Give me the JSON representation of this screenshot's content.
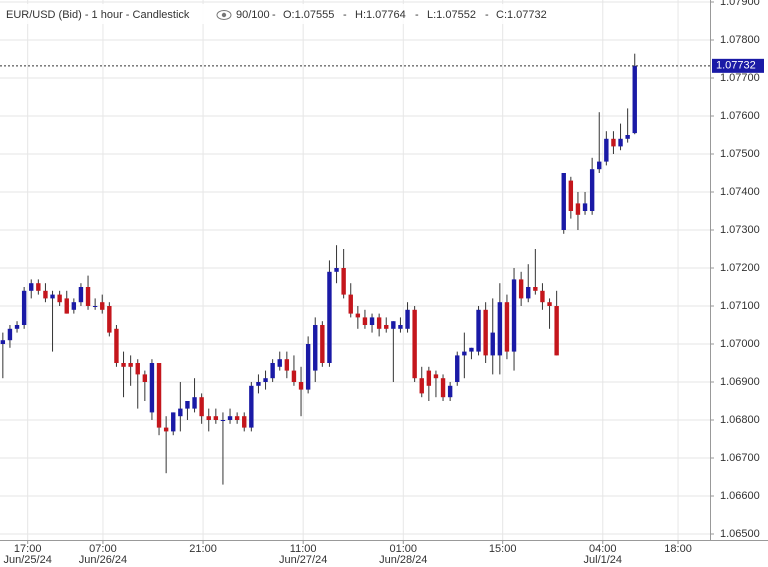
{
  "chart_data": {
    "type": "candlestick",
    "title": "EUR/USD (Bid) - 1 hour - Candlestick",
    "zoom": "90/100",
    "ohlc_text": [
      "O:1.07555",
      "H:1.07764",
      "L:1.07552",
      "C:1.07732"
    ],
    "last_price": 1.07732,
    "up_color": "#1a1aa6",
    "down_color": "#c4161c",
    "grid": true,
    "xlim": [
      -0.4,
      99.6
    ],
    "ylim": [
      1.065,
      1.079
    ],
    "yticks": [
      {
        "value": 1.065,
        "label": "1.06500"
      },
      {
        "value": 1.066,
        "label": "1.06600"
      },
      {
        "value": 1.067,
        "label": "1.06700"
      },
      {
        "value": 1.068,
        "label": "1.06800"
      },
      {
        "value": 1.069,
        "label": "1.06900"
      },
      {
        "value": 1.07,
        "label": "1.07000"
      },
      {
        "value": 1.071,
        "label": "1.07100"
      },
      {
        "value": 1.072,
        "label": "1.07200"
      },
      {
        "value": 1.073,
        "label": "1.07300"
      },
      {
        "value": 1.074,
        "label": "1.07400"
      },
      {
        "value": 1.075,
        "label": "1.07500"
      },
      {
        "value": 1.076,
        "label": "1.07600"
      },
      {
        "value": 1.077,
        "label": "1.07700"
      },
      {
        "value": 1.078,
        "label": "1.07800"
      },
      {
        "value": 1.079,
        "label": "1.07900"
      }
    ],
    "xticks": [
      {
        "value": 3.5,
        "label": "17:00"
      },
      {
        "value": 14.1,
        "label": "07:00"
      },
      {
        "value": 28.2,
        "label": "21:00"
      },
      {
        "value": 42.3,
        "label": "11:00"
      },
      {
        "value": 56.4,
        "label": "01:00"
      },
      {
        "value": 70.4,
        "label": "15:00"
      },
      {
        "value": 84.5,
        "label": "04:00"
      },
      {
        "value": 95.1,
        "label": "18:00"
      }
    ],
    "xtick_dates": [
      {
        "value": 3.5,
        "label": "Jun/25/24"
      },
      {
        "value": 14.1,
        "label": "Jun/26/24"
      },
      {
        "value": 42.3,
        "label": "Jun/27/24"
      },
      {
        "value": 56.4,
        "label": "Jun/28/24"
      },
      {
        "value": 84.5,
        "label": "Jul/1/24"
      }
    ],
    "x": [
      0,
      1,
      2,
      3,
      4,
      5,
      6,
      7,
      8,
      9,
      10,
      11,
      12,
      13,
      14,
      15,
      16,
      17,
      18,
      19,
      20,
      21,
      22,
      23,
      24,
      25,
      26,
      27,
      28,
      29,
      30,
      31,
      32,
      33,
      34,
      35,
      36,
      37,
      38,
      39,
      40,
      41,
      42,
      43,
      44,
      45,
      46,
      47,
      48,
      49,
      50,
      51,
      52,
      53,
      54,
      55,
      56,
      57,
      58,
      59,
      60,
      61,
      62,
      63,
      64,
      65,
      66,
      67,
      68,
      69,
      70,
      71,
      72,
      73,
      74,
      75,
      76,
      77,
      78,
      79,
      80,
      81,
      82,
      83,
      84,
      85,
      86,
      87,
      88,
      89
    ],
    "open": [
      1.07,
      1.0701,
      1.0704,
      1.0705,
      1.0714,
      1.0716,
      1.0714,
      1.0712,
      1.0713,
      1.0712,
      1.0709,
      1.0711,
      1.0715,
      1.071,
      1.0711,
      1.071,
      1.0704,
      1.0695,
      1.0695,
      1.0695,
      1.0692,
      1.0682,
      1.0695,
      1.0678,
      1.0677,
      1.0681,
      1.0683,
      1.0683,
      1.0686,
      1.0681,
      1.0681,
      1.068,
      1.068,
      1.0681,
      1.0681,
      1.0678,
      1.0689,
      1.069,
      1.0691,
      1.0694,
      1.0696,
      1.0693,
      1.069,
      1.0688,
      1.0693,
      1.0705,
      1.0695,
      1.0719,
      1.072,
      1.0713,
      1.0708,
      1.0707,
      1.0705,
      1.0707,
      1.0705,
      1.0704,
      1.0704,
      1.0704,
      1.0709,
      1.0691,
      1.0693,
      1.0692,
      1.0691,
      1.0686,
      1.069,
      1.0697,
      1.0698,
      1.0698,
      1.0709,
      1.0697,
      1.0697,
      1.0711,
      1.0698,
      1.0717,
      1.0712,
      1.0715,
      1.0714,
      1.0711,
      1.071,
      1.073,
      1.0743,
      1.0737,
      1.0735,
      1.0735,
      1.0746,
      1.0748,
      1.0754,
      1.0752,
      1.0754,
      1.07555
    ],
    "high": [
      1.0703,
      1.0705,
      1.0706,
      1.0715,
      1.0717,
      1.0717,
      1.0716,
      1.0714,
      1.0714,
      1.0714,
      1.0712,
      1.0716,
      1.0718,
      1.0712,
      1.0713,
      1.0711,
      1.0705,
      1.0698,
      1.0697,
      1.0696,
      1.0693,
      1.0696,
      1.0695,
      1.0681,
      1.0682,
      1.069,
      1.0685,
      1.0691,
      1.0687,
      1.0683,
      1.0683,
      1.0682,
      1.0683,
      1.0682,
      1.0682,
      1.069,
      1.0692,
      1.0693,
      1.0696,
      1.0698,
      1.0698,
      1.0697,
      1.0694,
      1.0702,
      1.0707,
      1.0706,
      1.0722,
      1.0726,
      1.0725,
      1.0716,
      1.071,
      1.0709,
      1.0708,
      1.0708,
      1.0707,
      1.0706,
      1.0707,
      1.0711,
      1.071,
      1.0694,
      1.0694,
      1.0693,
      1.0692,
      1.069,
      1.0698,
      1.0703,
      1.0699,
      1.071,
      1.0711,
      1.0712,
      1.0716,
      1.0713,
      1.072,
      1.0719,
      1.0721,
      1.0725,
      1.0716,
      1.0712,
      1.0714,
      1.0745,
      1.0744,
      1.074,
      1.074,
      1.0749,
      1.0761,
      1.0756,
      1.0756,
      1.0758,
      1.0762,
      1.07764
    ],
    "low": [
      1.0691,
      1.0699,
      1.0703,
      1.0704,
      1.0712,
      1.0713,
      1.0711,
      1.0698,
      1.071,
      1.0708,
      1.0708,
      1.071,
      1.0709,
      1.0709,
      1.0708,
      1.0702,
      1.0694,
      1.0686,
      1.0689,
      1.0683,
      1.0685,
      1.068,
      1.0676,
      1.0666,
      1.0676,
      1.0677,
      1.068,
      1.0682,
      1.0679,
      1.0677,
      1.0679,
      1.0663,
      1.0679,
      1.0679,
      1.0677,
      1.0677,
      1.0687,
      1.0688,
      1.069,
      1.0693,
      1.0691,
      1.0689,
      1.0681,
      1.0687,
      1.069,
      1.0694,
      1.0694,
      1.0716,
      1.0712,
      1.0707,
      1.0704,
      1.0704,
      1.0703,
      1.0702,
      1.0703,
      1.069,
      1.0703,
      1.0703,
      1.069,
      1.0686,
      1.0685,
      1.0686,
      1.0685,
      1.0685,
      1.0689,
      1.0691,
      1.0696,
      1.0697,
      1.0695,
      1.0692,
      1.0692,
      1.0696,
      1.0693,
      1.071,
      1.0711,
      1.0713,
      1.0709,
      1.0704,
      1.0697,
      1.0729,
      1.0733,
      1.073,
      1.0734,
      1.0734,
      1.0745,
      1.0747,
      1.075,
      1.0751,
      1.0753,
      1.07552
    ],
    "close": [
      1.0701,
      1.0704,
      1.0705,
      1.0714,
      1.0716,
      1.0714,
      1.0712,
      1.0713,
      1.0711,
      1.0708,
      1.0711,
      1.0715,
      1.071,
      1.071,
      1.0709,
      1.0703,
      1.0695,
      1.0694,
      1.0694,
      1.0692,
      1.069,
      1.0695,
      1.0678,
      1.0677,
      1.0682,
      1.0683,
      1.0685,
      1.0686,
      1.0681,
      1.068,
      1.068,
      1.068,
      1.0681,
      1.068,
      1.0678,
      1.0689,
      1.069,
      1.0691,
      1.0695,
      1.0696,
      1.0693,
      1.069,
      1.0688,
      1.07,
      1.0705,
      1.0695,
      1.0719,
      1.072,
      1.0713,
      1.0708,
      1.0707,
      1.0705,
      1.0707,
      1.0704,
      1.0704,
      1.0706,
      1.0705,
      1.0709,
      1.0691,
      1.0687,
      1.0689,
      1.0691,
      1.0686,
      1.0689,
      1.0697,
      1.0698,
      1.0699,
      1.0709,
      1.0697,
      1.0703,
      1.0711,
      1.0698,
      1.0717,
      1.0712,
      1.0715,
      1.0714,
      1.0711,
      1.071,
      1.0697,
      1.0745,
      1.0735,
      1.0734,
      1.0737,
      1.0746,
      1.0748,
      1.0754,
      1.0752,
      1.0754,
      1.0755,
      1.07732
    ]
  }
}
